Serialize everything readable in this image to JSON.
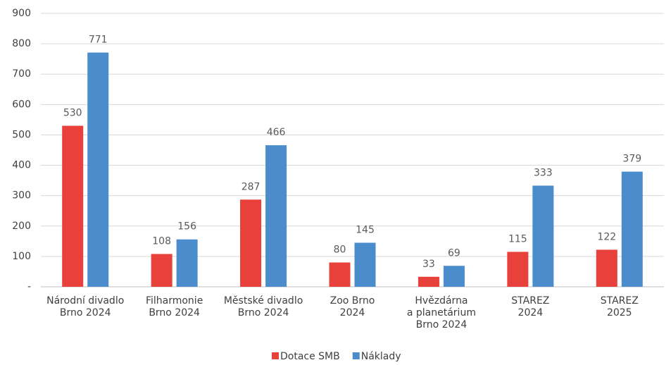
{
  "chart_data": {
    "type": "bar",
    "categories": [
      [
        "Národní divadlo",
        "Brno 2024"
      ],
      [
        "Filharmonie",
        "Brno 2024"
      ],
      [
        "Městské divadlo",
        "Brno 2024"
      ],
      [
        "Zoo Brno",
        "2024"
      ],
      [
        "Hvězdárna",
        "a planetárium",
        "Brno 2024"
      ],
      [
        "STAREZ",
        "2024"
      ],
      [
        "STAREZ",
        "2025"
      ]
    ],
    "series": [
      {
        "name": "Dotace SMB",
        "color": "#e8403a",
        "values": [
          530,
          108,
          287,
          80,
          33,
          115,
          122
        ]
      },
      {
        "name": "Náklady",
        "color": "#4b8dcc",
        "values": [
          771,
          156,
          466,
          145,
          69,
          333,
          379
        ]
      }
    ],
    "ylim": [
      0,
      900
    ],
    "yticks": [
      {
        "value": 0,
        "label": "-"
      },
      100,
      200,
      300,
      400,
      500,
      600,
      700,
      800,
      900
    ],
    "grid": true,
    "legend": "bottom"
  }
}
